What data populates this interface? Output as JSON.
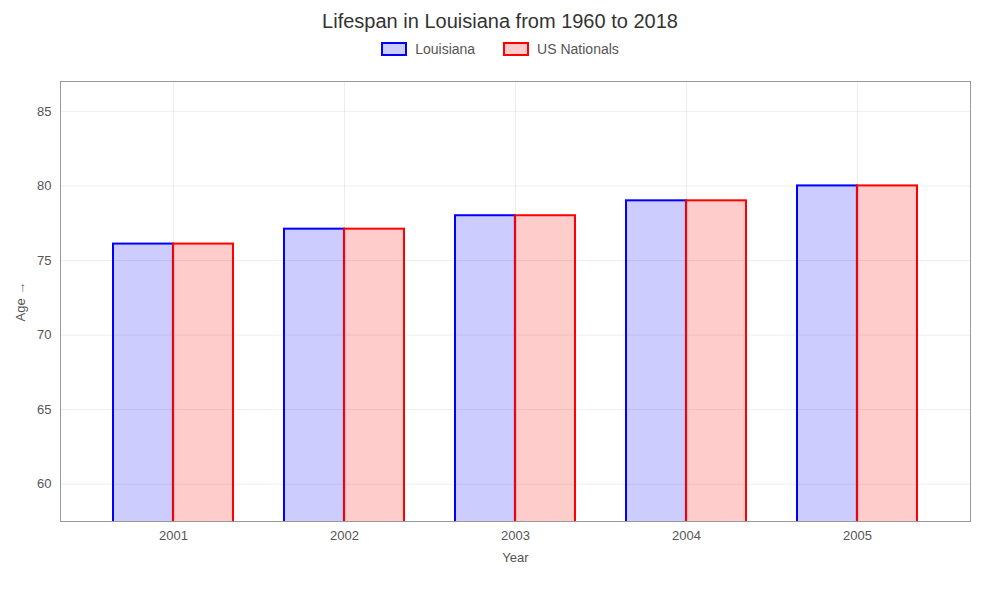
{
  "chart_data": {
    "type": "bar",
    "title": "Lifespan in Louisiana from 1960 to 2018",
    "xlabel": "Year",
    "ylabel": "Age",
    "categories": [
      "2001",
      "2002",
      "2003",
      "2004",
      "2005"
    ],
    "series": [
      {
        "name": "Louisiana",
        "color": "#0000ff",
        "values": [
          76.1,
          77.1,
          78.0,
          79.0,
          80.0
        ]
      },
      {
        "name": "US Nationals",
        "color": "#ff0000",
        "values": [
          76.1,
          77.1,
          78.0,
          79.0,
          80.0
        ]
      }
    ],
    "ylim": [
      57.5,
      87
    ],
    "yticks": [
      60,
      65,
      70,
      75,
      80,
      85
    ],
    "grid": true,
    "legend": "top"
  }
}
